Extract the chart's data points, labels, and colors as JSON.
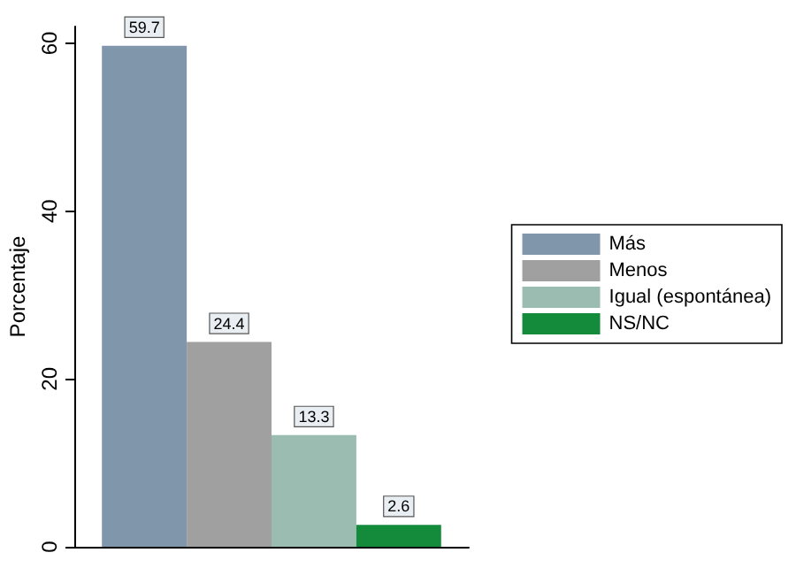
{
  "chart_data": {
    "type": "bar",
    "ylabel": "Porcentaje",
    "categories": [
      null
    ],
    "series": [
      {
        "name": "Más",
        "color": "#7f96ab",
        "values": [
          59.7
        ]
      },
      {
        "name": "Menos",
        "color": "#a0a0a0",
        "values": [
          24.4
        ]
      },
      {
        "name": "Igual (espontánea)",
        "color": "#9bbcb0",
        "values": [
          13.3
        ]
      },
      {
        "name": "NS/NC",
        "color": "#138b3b",
        "values": [
          2.6
        ]
      }
    ],
    "ylim": [
      0,
      62
    ],
    "yticks": [
      0,
      20,
      40,
      60
    ],
    "data_labels": true,
    "grid": false,
    "legend": "right"
  }
}
